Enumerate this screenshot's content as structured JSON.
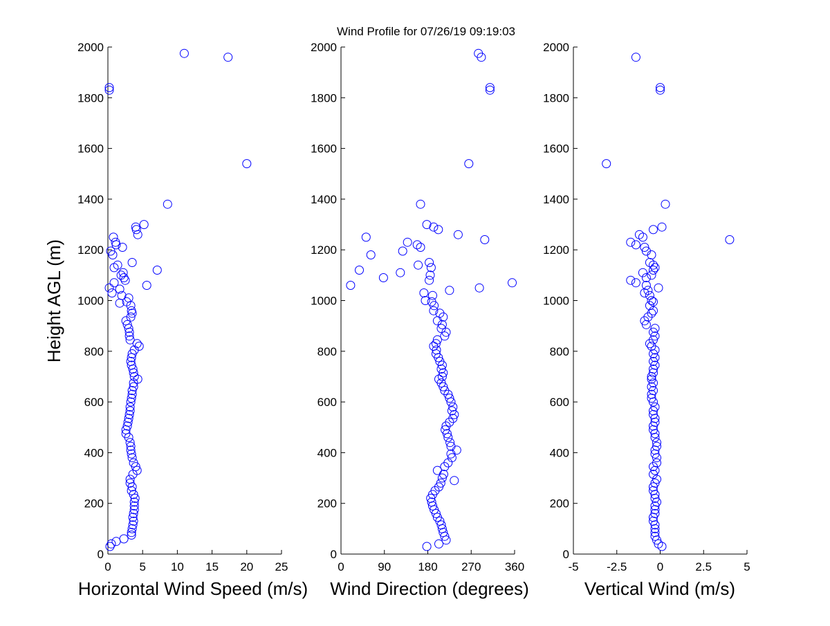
{
  "figure": {
    "title": "Wind Profile for  07/26/19 09:19:03",
    "ylabel": "Height AGL (m)"
  },
  "colors": {
    "marker": "#0000ff",
    "axis": "#000000",
    "background": "#ffffff"
  },
  "chart_data": [
    {
      "type": "scatter",
      "xlabel": "Horizontal Wind Speed (m/s)",
      "ylabel": "Height AGL (m)",
      "xlim": [
        0,
        25
      ],
      "ylim": [
        0,
        2000
      ],
      "xticks": [
        "0",
        "5",
        "10",
        "15",
        "20",
        "25"
      ],
      "yticks": [
        "0",
        "200",
        "400",
        "600",
        "800",
        "1000",
        "1200",
        "1400",
        "1600",
        "1800",
        "2000"
      ],
      "grid": false,
      "points": [
        [
          0.3,
          30
        ],
        [
          0.5,
          40
        ],
        [
          1.2,
          50
        ],
        [
          2.3,
          60
        ],
        [
          3.4,
          75
        ],
        [
          3.4,
          85
        ],
        [
          3.5,
          100
        ],
        [
          3.6,
          115
        ],
        [
          3.7,
          130
        ],
        [
          3.6,
          145
        ],
        [
          3.7,
          160
        ],
        [
          3.8,
          175
        ],
        [
          3.8,
          190
        ],
        [
          3.8,
          205
        ],
        [
          3.9,
          220
        ],
        [
          3.7,
          235
        ],
        [
          3.4,
          250
        ],
        [
          3.5,
          265
        ],
        [
          3.2,
          280
        ],
        [
          3.2,
          295
        ],
        [
          3.6,
          315
        ],
        [
          4.2,
          330
        ],
        [
          4.0,
          345
        ],
        [
          3.7,
          360
        ],
        [
          3.5,
          380
        ],
        [
          3.4,
          395
        ],
        [
          3.3,
          410
        ],
        [
          3.3,
          425
        ],
        [
          3.2,
          440
        ],
        [
          3.0,
          460
        ],
        [
          2.6,
          475
        ],
        [
          2.6,
          490
        ],
        [
          2.8,
          505
        ],
        [
          2.9,
          520
        ],
        [
          3.0,
          535
        ],
        [
          3.1,
          550
        ],
        [
          3.2,
          565
        ],
        [
          3.2,
          580
        ],
        [
          3.3,
          600
        ],
        [
          3.4,
          615
        ],
        [
          3.5,
          630
        ],
        [
          3.5,
          645
        ],
        [
          3.7,
          660
        ],
        [
          3.7,
          675
        ],
        [
          4.3,
          690
        ],
        [
          3.8,
          700
        ],
        [
          3.7,
          715
        ],
        [
          3.6,
          730
        ],
        [
          3.4,
          745
        ],
        [
          3.3,
          760
        ],
        [
          3.4,
          775
        ],
        [
          3.5,
          790
        ],
        [
          3.8,
          805
        ],
        [
          4.5,
          820
        ],
        [
          4.2,
          830
        ],
        [
          3.2,
          845
        ],
        [
          3.1,
          860
        ],
        [
          3.1,
          875
        ],
        [
          3.0,
          890
        ],
        [
          2.8,
          905
        ],
        [
          2.6,
          920
        ],
        [
          3.3,
          935
        ],
        [
          3.5,
          950
        ],
        [
          3.4,
          960
        ],
        [
          3.3,
          980
        ],
        [
          2.7,
          995
        ],
        [
          1.7,
          990
        ],
        [
          3.0,
          1010
        ],
        [
          2.0,
          1020
        ],
        [
          0.6,
          1030
        ],
        [
          1.7,
          1045
        ],
        [
          0.2,
          1050
        ],
        [
          5.6,
          1060
        ],
        [
          0.9,
          1070
        ],
        [
          2.5,
          1080
        ],
        [
          2.3,
          1090
        ],
        [
          1.9,
          1100
        ],
        [
          2.2,
          1110
        ],
        [
          7.1,
          1120
        ],
        [
          0.9,
          1130
        ],
        [
          1.4,
          1140
        ],
        [
          3.5,
          1150
        ],
        [
          0.7,
          1180
        ],
        [
          0.4,
          1195
        ],
        [
          2.1,
          1210
        ],
        [
          1.2,
          1220
        ],
        [
          1.1,
          1230
        ],
        [
          0.8,
          1250
        ],
        [
          4.3,
          1260
        ],
        [
          4.1,
          1280
        ],
        [
          4.0,
          1290
        ],
        [
          5.2,
          1300
        ],
        [
          8.6,
          1380
        ],
        [
          20.0,
          1540
        ],
        [
          0.2,
          1830
        ],
        [
          0.2,
          1840
        ],
        [
          17.3,
          1960
        ],
        [
          11.0,
          1975
        ]
      ]
    },
    {
      "type": "scatter",
      "xlabel": "Wind Direction (degrees)",
      "ylabel": "",
      "xlim": [
        0,
        360
      ],
      "ylim": [
        0,
        2000
      ],
      "xticks": [
        "0",
        "90",
        "180",
        "270",
        "360"
      ],
      "yticks": [
        "0",
        "200",
        "400",
        "600",
        "800",
        "1000",
        "1200",
        "1400",
        "1600",
        "1800",
        "2000"
      ],
      "grid": false,
      "points": [
        [
          178,
          30
        ],
        [
          203,
          40
        ],
        [
          218,
          55
        ],
        [
          215,
          70
        ],
        [
          212,
          85
        ],
        [
          210,
          100
        ],
        [
          208,
          115
        ],
        [
          205,
          130
        ],
        [
          200,
          145
        ],
        [
          197,
          160
        ],
        [
          193,
          175
        ],
        [
          190,
          190
        ],
        [
          188,
          205
        ],
        [
          186,
          220
        ],
        [
          190,
          235
        ],
        [
          195,
          250
        ],
        [
          203,
          265
        ],
        [
          207,
          280
        ],
        [
          235,
          290
        ],
        [
          210,
          300
        ],
        [
          213,
          315
        ],
        [
          200,
          330
        ],
        [
          215,
          345
        ],
        [
          222,
          360
        ],
        [
          230,
          380
        ],
        [
          228,
          395
        ],
        [
          240,
          410
        ],
        [
          228,
          425
        ],
        [
          226,
          440
        ],
        [
          222,
          460
        ],
        [
          220,
          475
        ],
        [
          216,
          490
        ],
        [
          218,
          505
        ],
        [
          225,
          520
        ],
        [
          232,
          535
        ],
        [
          235,
          550
        ],
        [
          230,
          565
        ],
        [
          232,
          580
        ],
        [
          228,
          600
        ],
        [
          225,
          615
        ],
        [
          222,
          630
        ],
        [
          215,
          645
        ],
        [
          212,
          660
        ],
        [
          208,
          675
        ],
        [
          203,
          690
        ],
        [
          210,
          700
        ],
        [
          212,
          715
        ],
        [
          208,
          730
        ],
        [
          210,
          745
        ],
        [
          205,
          760
        ],
        [
          202,
          775
        ],
        [
          197,
          790
        ],
        [
          198,
          805
        ],
        [
          192,
          820
        ],
        [
          197,
          830
        ],
        [
          200,
          845
        ],
        [
          215,
          860
        ],
        [
          218,
          875
        ],
        [
          208,
          890
        ],
        [
          210,
          905
        ],
        [
          200,
          920
        ],
        [
          212,
          935
        ],
        [
          205,
          950
        ],
        [
          192,
          960
        ],
        [
          193,
          980
        ],
        [
          188,
          995
        ],
        [
          175,
          1000
        ],
        [
          190,
          1020
        ],
        [
          172,
          1030
        ],
        [
          225,
          1040
        ],
        [
          287,
          1050
        ],
        [
          20,
          1060
        ],
        [
          355,
          1070
        ],
        [
          183,
          1080
        ],
        [
          88,
          1090
        ],
        [
          185,
          1100
        ],
        [
          123,
          1110
        ],
        [
          38,
          1120
        ],
        [
          187,
          1130
        ],
        [
          160,
          1140
        ],
        [
          183,
          1150
        ],
        [
          62,
          1180
        ],
        [
          128,
          1195
        ],
        [
          165,
          1210
        ],
        [
          158,
          1220
        ],
        [
          138,
          1230
        ],
        [
          298,
          1240
        ],
        [
          52,
          1250
        ],
        [
          243,
          1260
        ],
        [
          202,
          1280
        ],
        [
          192,
          1290
        ],
        [
          178,
          1300
        ],
        [
          165,
          1380
        ],
        [
          265,
          1540
        ],
        [
          309,
          1830
        ],
        [
          309,
          1840
        ],
        [
          291,
          1960
        ],
        [
          285,
          1975
        ]
      ]
    },
    {
      "type": "scatter",
      "xlabel": "Vertical Wind (m/s)",
      "ylabel": "",
      "xlim": [
        -5,
        5
      ],
      "ylim": [
        0,
        2000
      ],
      "xticks": [
        "-5",
        "-2.5",
        "0",
        "2.5",
        "5"
      ],
      "yticks": [
        "0",
        "200",
        "400",
        "600",
        "800",
        "1000",
        "1200",
        "1400",
        "1600",
        "1800",
        "2000"
      ],
      "grid": false,
      "points": [
        [
          0.1,
          30
        ],
        [
          -0.1,
          40
        ],
        [
          -0.2,
          55
        ],
        [
          -0.3,
          70
        ],
        [
          -0.3,
          85
        ],
        [
          -0.3,
          100
        ],
        [
          -0.3,
          115
        ],
        [
          -0.4,
          130
        ],
        [
          -0.4,
          145
        ],
        [
          -0.3,
          160
        ],
        [
          -0.3,
          175
        ],
        [
          -0.3,
          190
        ],
        [
          -0.2,
          205
        ],
        [
          -0.3,
          220
        ],
        [
          -0.3,
          235
        ],
        [
          -0.4,
          250
        ],
        [
          -0.4,
          265
        ],
        [
          -0.3,
          280
        ],
        [
          -0.2,
          295
        ],
        [
          -0.4,
          315
        ],
        [
          -0.3,
          330
        ],
        [
          -0.4,
          345
        ],
        [
          -0.2,
          360
        ],
        [
          -0.2,
          380
        ],
        [
          -0.3,
          395
        ],
        [
          -0.3,
          410
        ],
        [
          -0.2,
          425
        ],
        [
          -0.2,
          440
        ],
        [
          -0.3,
          460
        ],
        [
          -0.3,
          475
        ],
        [
          -0.4,
          490
        ],
        [
          -0.4,
          505
        ],
        [
          -0.3,
          520
        ],
        [
          -0.3,
          535
        ],
        [
          -0.4,
          550
        ],
        [
          -0.4,
          565
        ],
        [
          -0.3,
          580
        ],
        [
          -0.4,
          600
        ],
        [
          -0.5,
          615
        ],
        [
          -0.5,
          630
        ],
        [
          -0.4,
          645
        ],
        [
          -0.5,
          660
        ],
        [
          -0.4,
          675
        ],
        [
          -0.5,
          690
        ],
        [
          -0.5,
          700
        ],
        [
          -0.4,
          715
        ],
        [
          -0.4,
          730
        ],
        [
          -0.3,
          745
        ],
        [
          -0.4,
          760
        ],
        [
          -0.3,
          775
        ],
        [
          -0.4,
          790
        ],
        [
          -0.3,
          805
        ],
        [
          -0.5,
          820
        ],
        [
          -0.6,
          830
        ],
        [
          -0.4,
          845
        ],
        [
          -0.3,
          860
        ],
        [
          -0.4,
          875
        ],
        [
          -0.3,
          890
        ],
        [
          -0.8,
          905
        ],
        [
          -0.9,
          920
        ],
        [
          -0.7,
          935
        ],
        [
          -0.5,
          950
        ],
        [
          -0.4,
          960
        ],
        [
          -0.6,
          980
        ],
        [
          -0.4,
          995
        ],
        [
          -0.5,
          1000
        ],
        [
          -0.6,
          1020
        ],
        [
          -0.9,
          1030
        ],
        [
          -0.7,
          1040
        ],
        [
          -0.1,
          1050
        ],
        [
          -0.8,
          1060
        ],
        [
          -1.4,
          1070
        ],
        [
          -1.7,
          1080
        ],
        [
          -0.8,
          1090
        ],
        [
          -0.5,
          1100
        ],
        [
          -1.0,
          1110
        ],
        [
          -0.4,
          1120
        ],
        [
          -0.3,
          1130
        ],
        [
          -0.4,
          1140
        ],
        [
          -0.6,
          1150
        ],
        [
          -0.5,
          1180
        ],
        [
          -0.8,
          1195
        ],
        [
          -0.9,
          1210
        ],
        [
          -1.4,
          1220
        ],
        [
          -1.7,
          1230
        ],
        [
          4.0,
          1240
        ],
        [
          -1.0,
          1250
        ],
        [
          -1.2,
          1260
        ],
        [
          -0.4,
          1280
        ],
        [
          0.1,
          1290
        ],
        [
          0.3,
          1380
        ],
        [
          -3.1,
          1540
        ],
        [
          0.0,
          1830
        ],
        [
          0.0,
          1840
        ],
        [
          -1.4,
          1960
        ]
      ]
    }
  ]
}
